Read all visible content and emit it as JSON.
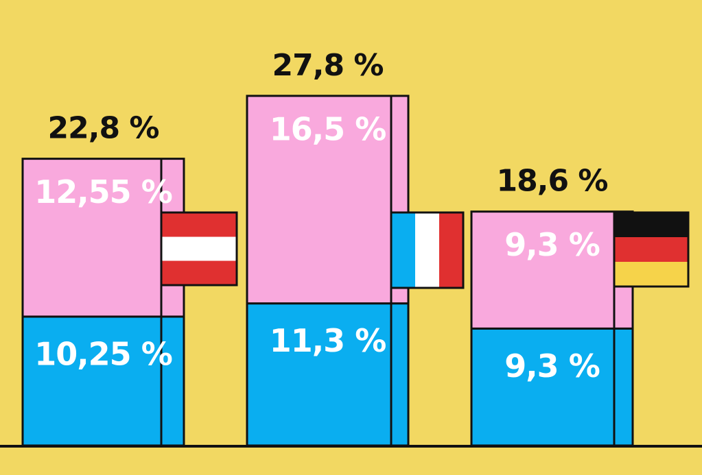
{
  "chart_data": {
    "type": "stacked_bar",
    "categories": [
      null,
      null,
      null
    ],
    "series": [
      {
        "color": "#0aaef0",
        "values": [
          10.25,
          11.3,
          9.3
        ],
        "value_labels": [
          "10,25 %",
          "11,3 %",
          "9,3 %"
        ]
      },
      {
        "color": "#f9a9dd",
        "values": [
          12.55,
          16.5,
          9.3
        ],
        "value_labels": [
          "12,55 %",
          "16,5 %",
          "9,3 %"
        ]
      }
    ],
    "totals": [
      22.8,
      27.8,
      18.6
    ],
    "total_labels": [
      "22,8 %",
      "27,8 %",
      "18,6 %"
    ]
  }
}
